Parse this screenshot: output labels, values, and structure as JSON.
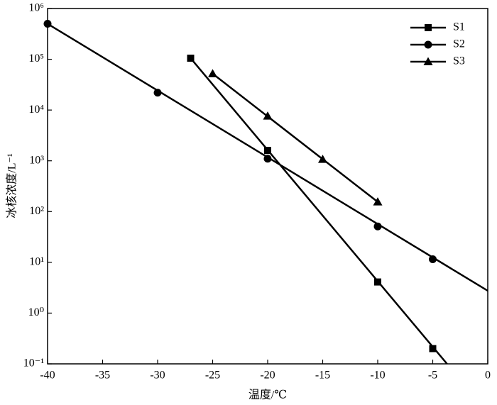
{
  "chart_data": {
    "type": "line",
    "xlabel": "温度/℃",
    "ylabel": "冰核浓度/L⁻¹",
    "xlim": [
      -40,
      0
    ],
    "xticks": [
      -40,
      -35,
      -30,
      -25,
      -20,
      -15,
      -10,
      -5,
      0
    ],
    "ylim": [
      0.1,
      1000000
    ],
    "log_y": true,
    "yticks": [
      {
        "value": 0.1,
        "label": "10⁻¹"
      },
      {
        "value": 1,
        "label": "10⁰"
      },
      {
        "value": 10,
        "label": "10¹"
      },
      {
        "value": 100,
        "label": "10²"
      },
      {
        "value": 1000,
        "label": "10³"
      },
      {
        "value": 10000,
        "label": "10⁴"
      },
      {
        "value": 100000,
        "label": "10⁵"
      },
      {
        "value": 1000000,
        "label": "10⁶"
      }
    ],
    "legend": "upper right",
    "series": [
      {
        "name": "S1",
        "color": "#000000",
        "marker": "square",
        "x": [
          -27,
          -20,
          -10,
          -5
        ],
        "values": [
          105000,
          1600,
          4.1,
          0.2
        ],
        "line_x": [
          -27,
          -3.7
        ],
        "line_values": [
          105000,
          0.1
        ]
      },
      {
        "name": "S2",
        "color": "#000000",
        "marker": "circle",
        "x": [
          -40,
          -30,
          -20,
          -10,
          -5
        ],
        "values": [
          500000,
          22000,
          1100,
          51,
          11.5
        ],
        "line_x": [
          -40,
          0
        ],
        "line_values": [
          500000,
          2.75
        ]
      },
      {
        "name": "S3",
        "color": "#000000",
        "marker": "triangle",
        "x": [
          -25,
          -20,
          -15,
          -10
        ],
        "values": [
          52000,
          7600,
          1070,
          155
        ],
        "line_x": [
          -25,
          -10
        ],
        "line_values": [
          52000,
          155
        ]
      }
    ]
  }
}
